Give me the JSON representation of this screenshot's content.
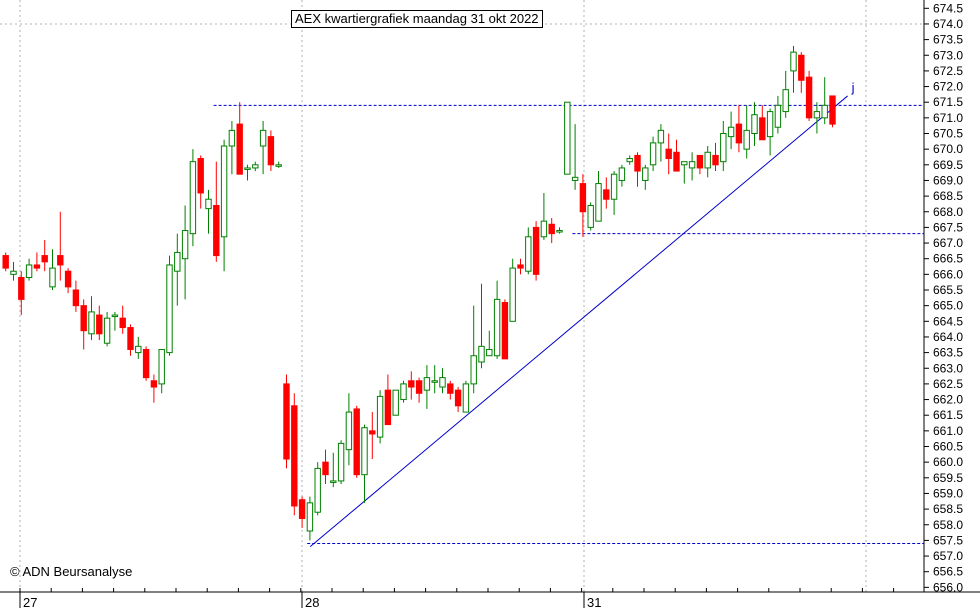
{
  "title": "AEX kwartiergrafiek maandag 31 okt 2022",
  "credit": "© ADN Beursanalyse",
  "colors": {
    "up": "#008000",
    "down": "#ff0000",
    "grid": "#b0b0b0",
    "line": "#0000cc"
  },
  "chart_data": {
    "type": "candlestick",
    "title": "AEX kwartiergrafiek maandag 31 okt 2022",
    "ylim": [
      656.0,
      674.5
    ],
    "y_ticks": [
      "674.5",
      "674.0",
      "673.5",
      "673.0",
      "672.5",
      "672.0",
      "671.5",
      "671.0",
      "670.5",
      "670.0",
      "669.5",
      "669.0",
      "668.5",
      "668.0",
      "667.5",
      "667.0",
      "666.5",
      "666.0",
      "665.5",
      "665.0",
      "664.5",
      "664.0",
      "663.5",
      "663.0",
      "662.5",
      "662.0",
      "661.5",
      "661.0",
      "660.5",
      "660.0",
      "659.5",
      "659.0",
      "658.5",
      "658.0",
      "657.5",
      "657.0",
      "656.5",
      "656.0"
    ],
    "x_day_labels": [
      {
        "label": "27",
        "index": 0
      },
      {
        "label": "28",
        "index": 36
      },
      {
        "label": "31",
        "index": 72
      }
    ],
    "grid": true,
    "candles": [
      [
        666.6,
        666.7,
        666.1,
        666.2
      ],
      [
        666.0,
        666.4,
        665.8,
        666.1
      ],
      [
        665.9,
        666.1,
        664.7,
        665.2
      ],
      [
        665.9,
        666.5,
        665.8,
        666.3
      ],
      [
        666.3,
        666.7,
        666.1,
        666.2
      ],
      [
        666.6,
        667.1,
        666.1,
        666.4
      ],
      [
        665.6,
        666.8,
        665.5,
        666.2
      ],
      [
        666.6,
        668.0,
        665.8,
        666.3
      ],
      [
        666.1,
        666.2,
        665.4,
        665.6
      ],
      [
        665.5,
        665.8,
        664.8,
        665.0
      ],
      [
        665.0,
        665.2,
        663.6,
        664.2
      ],
      [
        664.1,
        665.3,
        663.9,
        664.8
      ],
      [
        664.7,
        665.0,
        663.9,
        664.1
      ],
      [
        663.8,
        664.8,
        663.7,
        664.6
      ],
      [
        664.7,
        664.8,
        664.2,
        664.7
      ],
      [
        664.6,
        665.0,
        664.1,
        664.3
      ],
      [
        664.3,
        664.4,
        663.4,
        663.6
      ],
      [
        663.5,
        664.0,
        663.3,
        663.7
      ],
      [
        663.6,
        663.7,
        662.6,
        662.7
      ],
      [
        662.6,
        662.8,
        661.9,
        662.4
      ],
      [
        662.5,
        663.6,
        662.2,
        663.6
      ],
      [
        663.5,
        666.6,
        663.4,
        666.3
      ],
      [
        666.1,
        667.3,
        665.0,
        666.7
      ],
      [
        666.5,
        668.2,
        665.2,
        667.4
      ],
      [
        667.3,
        670.0,
        666.9,
        669.6
      ],
      [
        669.7,
        669.8,
        668.1,
        668.6
      ],
      [
        668.1,
        668.7,
        667.3,
        668.4
      ],
      [
        668.2,
        669.6,
        666.4,
        666.6
      ],
      [
        667.2,
        670.3,
        666.1,
        670.1
      ],
      [
        670.1,
        670.9,
        669.2,
        670.6
      ],
      [
        670.8,
        671.5,
        669.2,
        669.2
      ],
      [
        669.4,
        669.5,
        669.0,
        669.4
      ],
      [
        669.4,
        669.6,
        669.3,
        669.5
      ],
      [
        670.1,
        670.9,
        669.2,
        670.6
      ],
      [
        670.4,
        670.6,
        669.3,
        669.5
      ],
      [
        669.5,
        669.6,
        669.4,
        669.5
      ],
      [
        662.5,
        662.8,
        659.8,
        660.1
      ],
      [
        661.8,
        662.2,
        658.3,
        658.6
      ],
      [
        658.8,
        658.9,
        657.9,
        658.2
      ],
      [
        657.8,
        658.9,
        657.5,
        658.7
      ],
      [
        658.4,
        660.0,
        658.3,
        659.8
      ],
      [
        660.0,
        660.4,
        659.3,
        659.6
      ],
      [
        659.4,
        660.3,
        659.2,
        659.4
      ],
      [
        659.4,
        660.7,
        659.3,
        660.6
      ],
      [
        660.4,
        662.2,
        659.9,
        661.6
      ],
      [
        661.7,
        661.8,
        659.5,
        659.6
      ],
      [
        659.6,
        661.2,
        658.7,
        661.1
      ],
      [
        661.0,
        661.6,
        660.1,
        660.9
      ],
      [
        660.8,
        662.3,
        660.6,
        662.1
      ],
      [
        662.3,
        662.8,
        661.3,
        661.2
      ],
      [
        661.5,
        662.3,
        661.5,
        662.3
      ],
      [
        662.0,
        662.6,
        661.9,
        662.5
      ],
      [
        662.6,
        662.9,
        662.0,
        662.4
      ],
      [
        662.6,
        662.7,
        661.9,
        662.2
      ],
      [
        662.3,
        663.1,
        661.7,
        662.7
      ],
      [
        662.6,
        663.1,
        662.2,
        662.6
      ],
      [
        662.4,
        663.0,
        662.2,
        662.7
      ],
      [
        662.5,
        662.6,
        662.0,
        662.2
      ],
      [
        662.3,
        662.4,
        661.6,
        661.8
      ],
      [
        661.6,
        662.6,
        661.6,
        662.5
      ],
      [
        662.5,
        665.0,
        662.2,
        663.4
      ],
      [
        663.2,
        665.7,
        663.0,
        663.7
      ],
      [
        663.4,
        664.2,
        663.5,
        663.6
      ],
      [
        663.4,
        665.8,
        663.3,
        665.2
      ],
      [
        665.1,
        665.2,
        663.4,
        663.3
      ],
      [
        664.5,
        666.5,
        664.6,
        666.2
      ],
      [
        666.3,
        666.5,
        666.0,
        666.2
      ],
      [
        666.1,
        667.5,
        666.0,
        667.2
      ],
      [
        667.5,
        667.7,
        665.8,
        666.0
      ],
      [
        667.2,
        668.6,
        667.1,
        667.7
      ],
      [
        667.6,
        667.8,
        667.0,
        667.3
      ],
      [
        667.4,
        667.5,
        667.3,
        667.4
      ],
      [
        669.2,
        671.5,
        669.2,
        671.5
      ],
      [
        669.0,
        670.8,
        668.7,
        669.1
      ],
      [
        668.9,
        669.2,
        667.2,
        668.0
      ],
      [
        667.5,
        668.3,
        667.4,
        668.2
      ],
      [
        667.7,
        669.3,
        667.7,
        668.9
      ],
      [
        668.7,
        669.1,
        668.1,
        668.4
      ],
      [
        668.4,
        669.3,
        667.9,
        669.2
      ],
      [
        669.0,
        669.5,
        668.8,
        669.4
      ],
      [
        669.6,
        669.8,
        669.5,
        669.7
      ],
      [
        669.8,
        669.9,
        668.8,
        669.3
      ],
      [
        669.0,
        669.5,
        668.7,
        669.4
      ],
      [
        669.5,
        670.4,
        669.3,
        670.2
      ],
      [
        670.2,
        670.8,
        669.6,
        670.6
      ],
      [
        670.0,
        670.5,
        669.2,
        669.7
      ],
      [
        669.9,
        670.3,
        669.3,
        669.3
      ],
      [
        669.5,
        669.6,
        668.9,
        669.6
      ],
      [
        669.4,
        669.9,
        669.0,
        669.6
      ],
      [
        669.8,
        669.8,
        669.2,
        669.4
      ],
      [
        669.4,
        670.1,
        669.1,
        669.9
      ],
      [
        669.8,
        670.2,
        669.3,
        669.5
      ],
      [
        669.6,
        670.9,
        669.3,
        670.5
      ],
      [
        670.4,
        671.2,
        670.0,
        670.7
      ],
      [
        670.8,
        671.4,
        669.9,
        670.2
      ],
      [
        670.0,
        671.4,
        669.7,
        670.6
      ],
      [
        670.5,
        671.5,
        670.1,
        671.1
      ],
      [
        671.0,
        671.4,
        670.3,
        670.3
      ],
      [
        670.4,
        671.3,
        669.8,
        671.2
      ],
      [
        670.7,
        671.7,
        670.5,
        671.4
      ],
      [
        671.2,
        672.5,
        671.0,
        671.9
      ],
      [
        672.5,
        673.3,
        671.8,
        673.1
      ],
      [
        673.0,
        673.1,
        671.8,
        672.2
      ],
      [
        672.3,
        672.5,
        670.9,
        671.0
      ],
      [
        671.0,
        671.5,
        670.5,
        671.2
      ],
      [
        671.0,
        672.3,
        670.8,
        671.4
      ],
      [
        671.7,
        671.7,
        670.7,
        670.8
      ]
    ],
    "levels": [
      {
        "value": 671.4,
        "from_index": 27,
        "to_index": 108
      },
      {
        "value": 667.3,
        "from_index": 73,
        "to_index": 108
      },
      {
        "value": 657.4,
        "from_index": 39,
        "to_index": 108
      }
    ],
    "trendline": {
      "from": [
        39,
        657.3
      ],
      "to": [
        107,
        671.7
      ],
      "label": "j"
    }
  }
}
